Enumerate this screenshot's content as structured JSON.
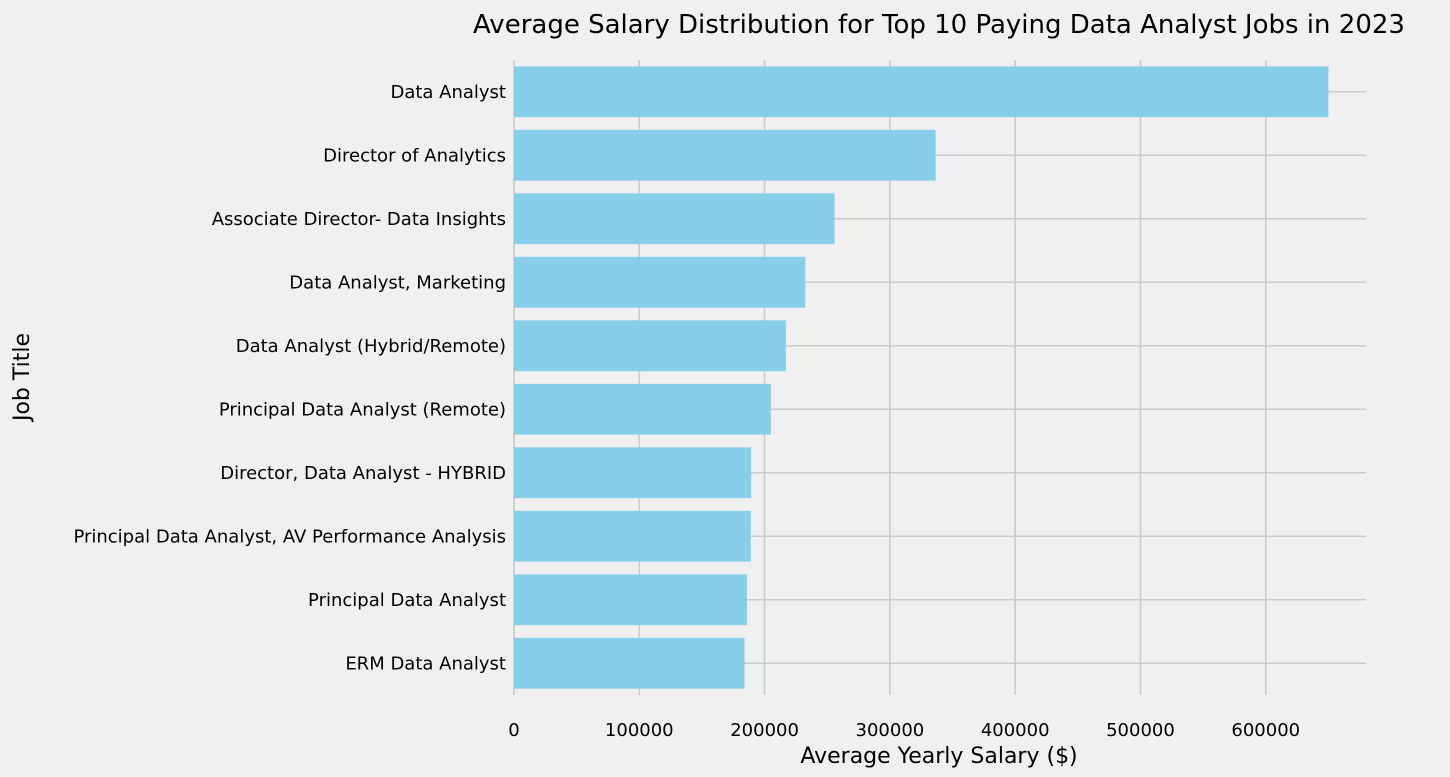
{
  "chart_data": {
    "type": "bar",
    "orientation": "horizontal",
    "title": "Average Salary Distribution for Top 10 Paying Data Analyst Jobs in 2023",
    "xlabel": "Average Yearly Salary ($)",
    "ylabel": "Job Title",
    "xlim": [
      0,
      680000
    ],
    "xticks": [
      "0",
      "100000",
      "200000",
      "300000",
      "400000",
      "500000",
      "600000"
    ],
    "xtick_values": [
      0,
      100000,
      200000,
      300000,
      400000,
      500000,
      600000
    ],
    "grid": true,
    "colors": {
      "bar": "#87ceeb",
      "background": "#f0f0f0",
      "grid": "#cbcbcb"
    },
    "categories": [
      "Data Analyst",
      "Director of Analytics",
      "Associate Director- Data Insights",
      "Data Analyst, Marketing",
      "Data Analyst (Hybrid/Remote)",
      "Principal Data Analyst (Remote)",
      "Director, Data Analyst - HYBRID",
      "Principal Data Analyst, AV Performance Analysis",
      "Principal Data Analyst",
      "ERM Data Analyst"
    ],
    "values": [
      650000,
      336500,
      255830,
      232423,
      217000,
      205000,
      189309,
      189000,
      186000,
      184000
    ]
  }
}
